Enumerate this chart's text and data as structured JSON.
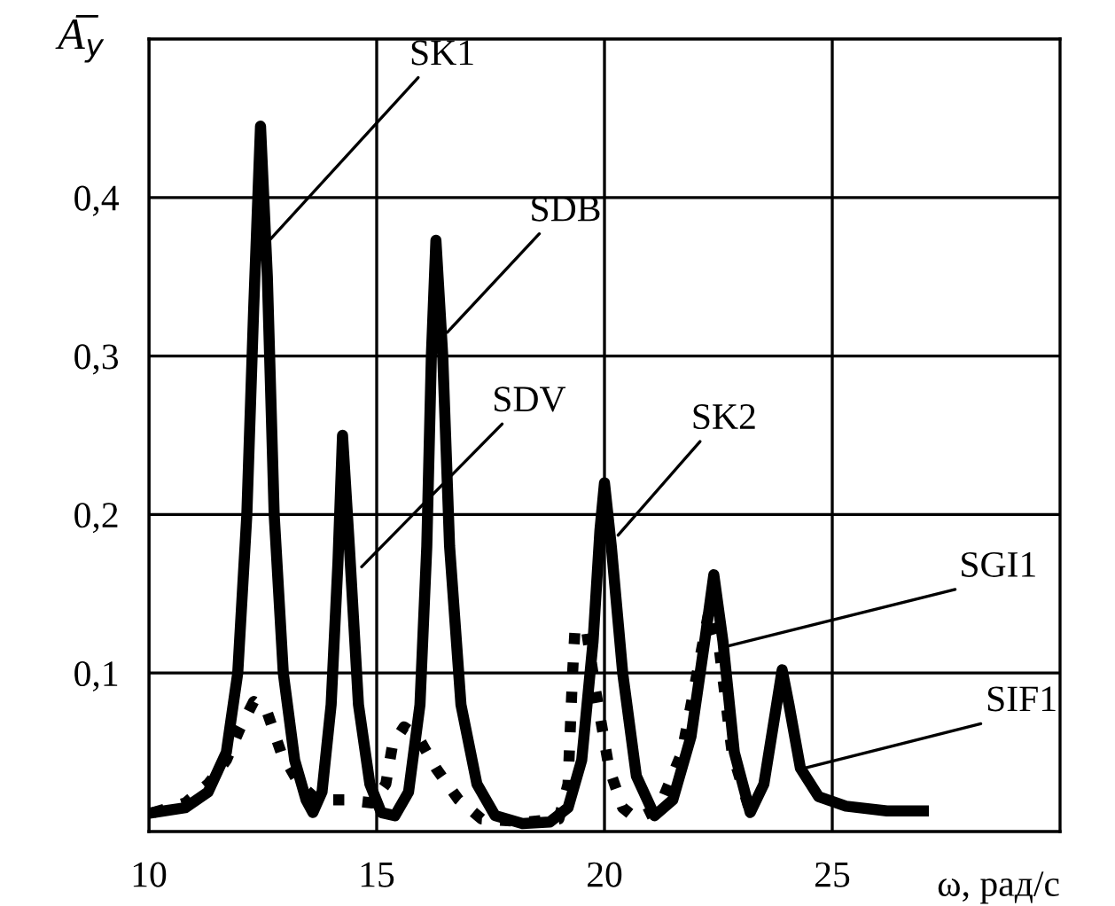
{
  "chart_data": {
    "type": "line",
    "xlabel": "ω, рад/с",
    "ylabel": "A̅$_{y}$",
    "xlim": [
      10,
      30
    ],
    "ylim": [
      0,
      0.5
    ],
    "xticks": [
      10,
      15,
      20,
      25
    ],
    "yticks": [
      {
        "value": 0.1,
        "label": "0,1"
      },
      {
        "value": 0.2,
        "label": "0,2"
      },
      {
        "value": 0.3,
        "label": "0,3"
      },
      {
        "value": 0.4,
        "label": "0,4"
      }
    ],
    "grid": true,
    "legend": false,
    "marker": "none",
    "series": [
      {
        "color": "#000000",
        "line_style": "solid",
        "x": [
          10.1,
          10.8,
          11.3,
          11.7,
          11.95,
          12.15,
          12.3,
          12.45,
          12.6,
          12.75,
          12.95,
          13.2,
          13.45,
          13.6,
          13.8,
          14.0,
          14.15,
          14.25,
          14.4,
          14.6,
          14.85,
          15.1,
          15.4,
          15.7,
          15.95,
          16.1,
          16.2,
          16.3,
          16.45,
          16.6,
          16.85,
          17.2,
          17.6,
          18.2,
          18.8,
          19.2,
          19.5,
          19.75,
          19.9,
          20.0,
          20.15,
          20.4,
          20.7,
          21.1,
          21.5,
          21.9,
          22.2,
          22.4,
          22.6,
          22.85,
          23.2,
          23.5,
          23.75,
          23.9,
          24.05,
          24.3,
          24.7,
          25.3,
          26.2,
          27.0
        ],
        "values": [
          0.012,
          0.015,
          0.025,
          0.05,
          0.1,
          0.2,
          0.33,
          0.445,
          0.35,
          0.2,
          0.1,
          0.045,
          0.02,
          0.012,
          0.025,
          0.08,
          0.17,
          0.25,
          0.18,
          0.08,
          0.03,
          0.012,
          0.01,
          0.025,
          0.08,
          0.18,
          0.3,
          0.373,
          0.3,
          0.18,
          0.08,
          0.03,
          0.01,
          0.005,
          0.006,
          0.015,
          0.045,
          0.12,
          0.19,
          0.22,
          0.18,
          0.1,
          0.035,
          0.01,
          0.02,
          0.06,
          0.12,
          0.162,
          0.12,
          0.05,
          0.012,
          0.03,
          0.075,
          0.102,
          0.08,
          0.04,
          0.022,
          0.016,
          0.013,
          0.013
        ]
      },
      {
        "color": "#000000",
        "line_style": "dotted",
        "x": [
          10.1,
          10.8,
          11.3,
          11.7,
          12.0,
          12.3,
          12.6,
          12.9,
          13.3,
          13.7,
          14.3,
          14.9,
          15.2,
          15.35,
          15.6,
          15.9,
          16.3,
          16.8,
          17.3,
          18.3,
          19.0,
          19.2,
          19.3,
          19.35,
          19.6,
          19.8,
          20.1,
          20.4,
          20.7,
          21.2,
          21.7,
          22.1,
          22.3,
          22.5,
          22.8,
          23.2
        ],
        "values": [
          0.012,
          0.018,
          0.03,
          0.045,
          0.065,
          0.082,
          0.075,
          0.05,
          0.03,
          0.02,
          0.02,
          0.018,
          0.03,
          0.055,
          0.066,
          0.06,
          0.04,
          0.02,
          0.008,
          0.006,
          0.008,
          0.03,
          0.1,
          0.126,
          0.128,
          0.09,
          0.04,
          0.015,
          0.008,
          0.015,
          0.05,
          0.11,
          0.14,
          0.12,
          0.05,
          0.012
        ]
      }
    ],
    "annotations": [
      {
        "text": "SK1",
        "x": 12.55,
        "y": 0.37
      },
      {
        "text": "SDB",
        "x": 16.55,
        "y": 0.315
      },
      {
        "text": "SDV",
        "x": 14.67,
        "y": 0.167
      },
      {
        "text": "SK2",
        "x": 20.3,
        "y": 0.187
      },
      {
        "text": "SGI1",
        "x": 22.7,
        "y": 0.117
      },
      {
        "text": "SIF1",
        "x": 24.4,
        "y": 0.04
      }
    ]
  }
}
